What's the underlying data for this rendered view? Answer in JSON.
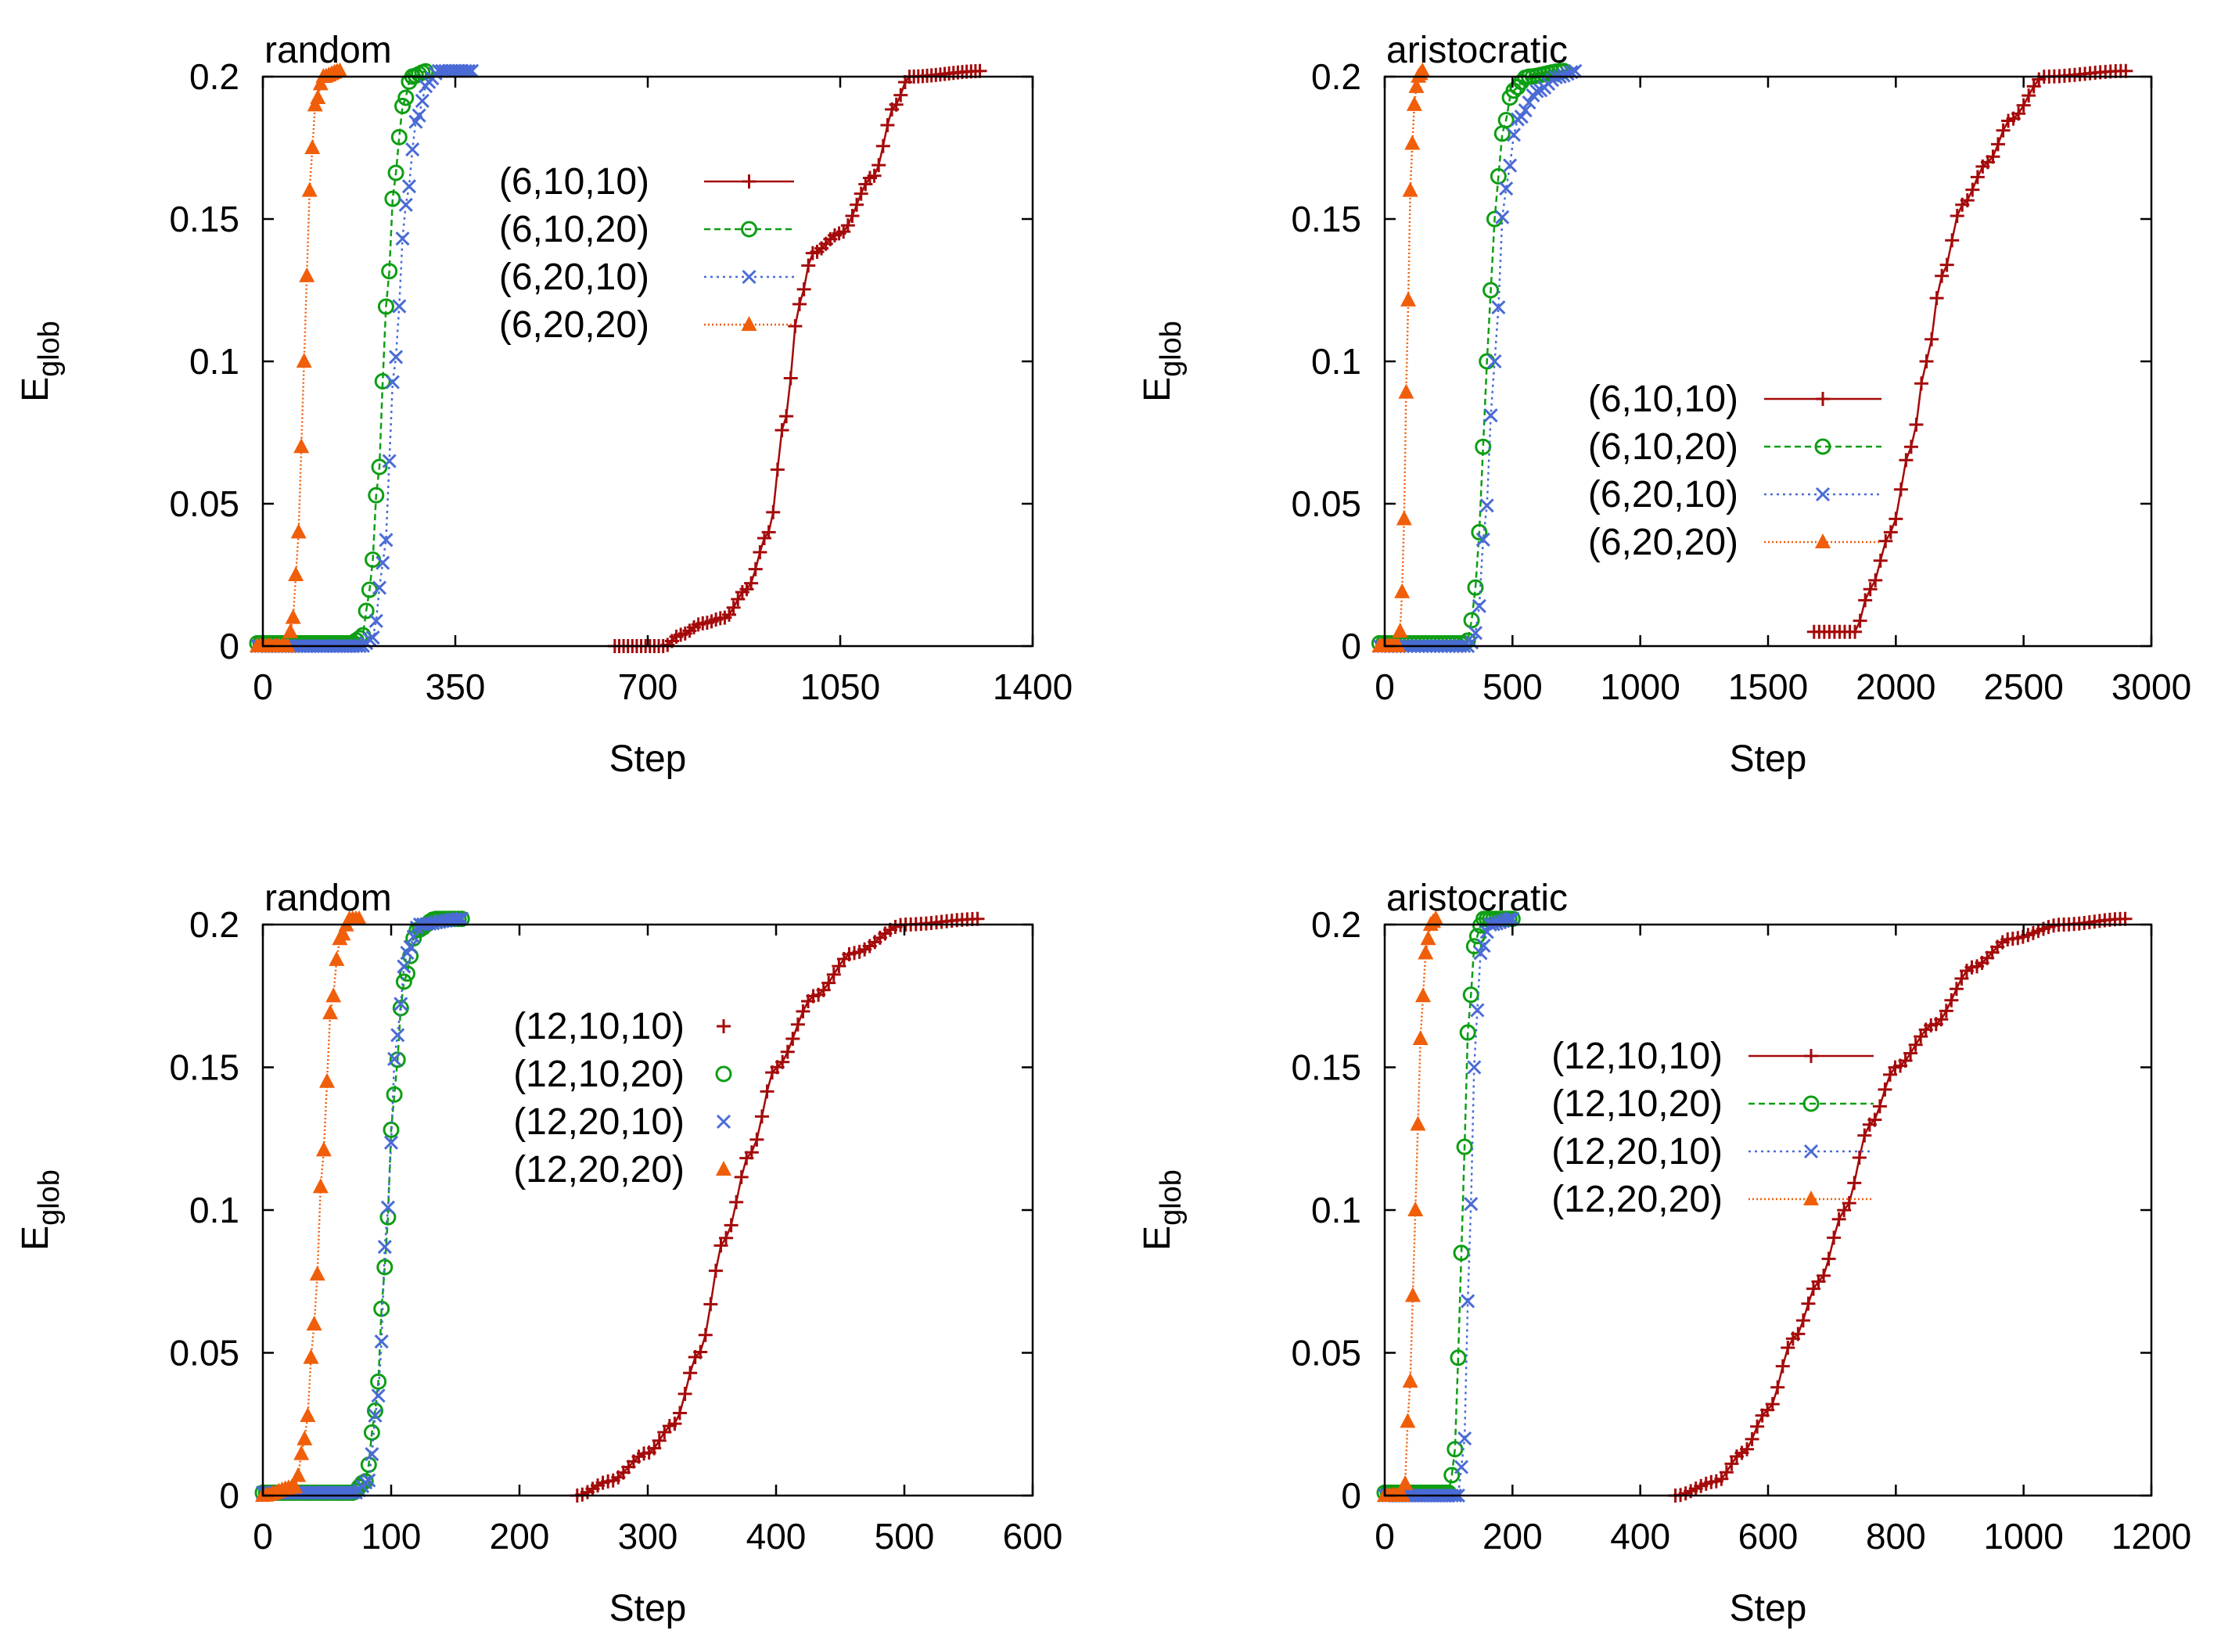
{
  "figure": {
    "description_text": ""
  },
  "chart_data": [
    {
      "type": "line",
      "title": "random",
      "xlabel": "Step",
      "ylabel_main": "E",
      "ylabel_sub": "glob",
      "xlim": [
        0,
        1400
      ],
      "ylim": [
        0,
        0.2
      ],
      "xticks": [
        0,
        350,
        700,
        1050,
        1400
      ],
      "xtick_labels": [
        "0",
        "350",
        "700",
        "1050",
        "1400"
      ],
      "yticks": [
        0,
        0.05,
        0.1,
        0.15,
        0.2
      ],
      "ytick_labels": [
        "0",
        "0.05",
        "0.1",
        "0.15",
        "0.2"
      ],
      "legend_position": "upper-middle",
      "legend_line": true,
      "series": [
        {
          "name": "(6,10,10)",
          "marker": "plus",
          "color": "#a50a0a",
          "start": 640,
          "end": 1310,
          "dx": 8,
          "curve": [
            [
              640,
              0
            ],
            [
              730,
              0
            ],
            [
              760,
              0.004
            ],
            [
              800,
              0.008
            ],
            [
              840,
              0.01
            ],
            [
              880,
              0.02
            ],
            [
              920,
              0.04
            ],
            [
              950,
              0.08
            ],
            [
              975,
              0.12
            ],
            [
              1000,
              0.138
            ],
            [
              1050,
              0.145
            ],
            [
              1110,
              0.165
            ],
            [
              1150,
              0.19
            ],
            [
              1175,
              0.2
            ],
            [
              1310,
              0.202
            ]
          ]
        },
        {
          "name": "(6,10,20)",
          "marker": "circle",
          "color": "#0e9e14",
          "start": -10,
          "end": 300,
          "dx": 6,
          "curve": [
            [
              -10,
              0.001
            ],
            [
              160,
              0.001
            ],
            [
              180,
              0.003
            ],
            [
              195,
              0.02
            ],
            [
              210,
              0.06
            ],
            [
              225,
              0.12
            ],
            [
              240,
              0.165
            ],
            [
              255,
              0.19
            ],
            [
              270,
              0.2
            ],
            [
              300,
              0.202
            ]
          ]
        },
        {
          "name": "(6,20,10)",
          "marker": "x",
          "color": "#4a6bd6",
          "start": -10,
          "end": 380,
          "dx": 6,
          "curve": [
            [
              -10,
              0.0
            ],
            [
              180,
              0.0
            ],
            [
              200,
              0.003
            ],
            [
              220,
              0.03
            ],
            [
              240,
              0.1
            ],
            [
              260,
              0.155
            ],
            [
              280,
              0.185
            ],
            [
              300,
              0.198
            ],
            [
              320,
              0.202
            ],
            [
              380,
              0.202
            ]
          ]
        },
        {
          "name": "(6,20,20)",
          "marker": "triangle",
          "color": "#f05e0a",
          "start": -10,
          "end": 140,
          "dx": 5,
          "curve": [
            [
              -10,
              0.0
            ],
            [
              45,
              0.0
            ],
            [
              55,
              0.01
            ],
            [
              65,
              0.04
            ],
            [
              75,
              0.1
            ],
            [
              85,
              0.16
            ],
            [
              95,
              0.19
            ],
            [
              110,
              0.2
            ],
            [
              140,
              0.202
            ]
          ]
        }
      ]
    },
    {
      "type": "line",
      "title": "aristocratic",
      "xlabel": "Step",
      "ylabel_main": "E",
      "ylabel_sub": "glob",
      "xlim": [
        0,
        3000
      ],
      "ylim": [
        0,
        0.2
      ],
      "xticks": [
        0,
        500,
        1000,
        1500,
        2000,
        2500,
        3000
      ],
      "xtick_labels": [
        "0",
        "500",
        "1000",
        "1500",
        "2000",
        "2500",
        "3000"
      ],
      "yticks": [
        0,
        0.05,
        0.1,
        0.15,
        0.2
      ],
      "ytick_labels": [
        "0",
        "0.05",
        "0.1",
        "0.15",
        "0.2"
      ],
      "legend_position": "center-right",
      "legend_line": true,
      "series": [
        {
          "name": "(6,10,10)",
          "marker": "plus",
          "color": "#a50a0a",
          "start": 1680,
          "end": 2900,
          "dx": 20,
          "curve": [
            [
              1680,
              0.005
            ],
            [
              1840,
              0.005
            ],
            [
              1900,
              0.02
            ],
            [
              1980,
              0.04
            ],
            [
              2060,
              0.07
            ],
            [
              2120,
              0.1
            ],
            [
              2180,
              0.13
            ],
            [
              2260,
              0.155
            ],
            [
              2360,
              0.17
            ],
            [
              2450,
              0.185
            ],
            [
              2580,
              0.2
            ],
            [
              2900,
              0.202
            ]
          ]
        },
        {
          "name": "(6,10,20)",
          "marker": "circle",
          "color": "#0e9e14",
          "start": -20,
          "end": 700,
          "dx": 15,
          "curve": [
            [
              -20,
              0.001
            ],
            [
              320,
              0.001
            ],
            [
              345,
              0.01
            ],
            [
              370,
              0.04
            ],
            [
              400,
              0.1
            ],
            [
              430,
              0.15
            ],
            [
              460,
              0.18
            ],
            [
              500,
              0.195
            ],
            [
              560,
              0.2
            ],
            [
              700,
              0.202
            ]
          ]
        },
        {
          "name": "(6,20,10)",
          "marker": "x",
          "color": "#4a6bd6",
          "start": -20,
          "end": 750,
          "dx": 15,
          "curve": [
            [
              -20,
              0.0
            ],
            [
              330,
              0.0
            ],
            [
              360,
              0.005
            ],
            [
              390,
              0.04
            ],
            [
              430,
              0.1
            ],
            [
              470,
              0.16
            ],
            [
              520,
              0.185
            ],
            [
              600,
              0.195
            ],
            [
              680,
              0.2
            ],
            [
              750,
              0.202
            ]
          ]
        },
        {
          "name": "(6,20,20)",
          "marker": "triangle",
          "color": "#f05e0a",
          "start": -20,
          "end": 150,
          "dx": 8,
          "curve": [
            [
              -20,
              0.0
            ],
            [
              55,
              0.0
            ],
            [
              70,
              0.02
            ],
            [
              85,
              0.09
            ],
            [
              100,
              0.16
            ],
            [
              115,
              0.19
            ],
            [
              130,
              0.2
            ],
            [
              150,
              0.202
            ]
          ]
        }
      ]
    },
    {
      "type": "line",
      "title": "random",
      "xlabel": "Step",
      "ylabel_main": "E",
      "ylabel_sub": "glob",
      "xlim": [
        0,
        600
      ],
      "ylim": [
        0,
        0.2
      ],
      "xticks": [
        0,
        100,
        200,
        300,
        400,
        500,
        600
      ],
      "xtick_labels": [
        "0",
        "100",
        "200",
        "300",
        "400",
        "500",
        "600"
      ],
      "yticks": [
        0,
        0.05,
        0.1,
        0.15,
        0.2
      ],
      "ytick_labels": [
        "0",
        "0.05",
        "0.1",
        "0.15",
        "0.2"
      ],
      "legend_position": "upper-middle",
      "legend_line": false,
      "series": [
        {
          "name": "(12,10,10)",
          "marker": "plus",
          "color": "#a50a0a",
          "start": 245,
          "end": 560,
          "dx": 4,
          "curve": [
            [
              245,
              0.0
            ],
            [
              270,
              0.005
            ],
            [
              300,
              0.015
            ],
            [
              320,
              0.025
            ],
            [
              340,
              0.05
            ],
            [
              360,
              0.09
            ],
            [
              380,
              0.12
            ],
            [
              400,
              0.15
            ],
            [
              430,
              0.175
            ],
            [
              460,
              0.19
            ],
            [
              500,
              0.2
            ],
            [
              560,
              0.202
            ]
          ]
        },
        {
          "name": "(12,10,20)",
          "marker": "circle",
          "color": "#0e9e14",
          "start": 0,
          "end": 155,
          "dx": 2.5,
          "curve": [
            [
              0,
              0.001
            ],
            [
              70,
              0.001
            ],
            [
              80,
              0.005
            ],
            [
              88,
              0.03
            ],
            [
              95,
              0.08
            ],
            [
              102,
              0.14
            ],
            [
              110,
              0.18
            ],
            [
              120,
              0.198
            ],
            [
              135,
              0.202
            ],
            [
              155,
              0.202
            ]
          ]
        },
        {
          "name": "(12,20,10)",
          "marker": "x",
          "color": "#4a6bd6",
          "start": 0,
          "end": 155,
          "dx": 2.5,
          "curve": [
            [
              0,
              0.001
            ],
            [
              72,
              0.001
            ],
            [
              82,
              0.005
            ],
            [
              90,
              0.035
            ],
            [
              97,
              0.1
            ],
            [
              104,
              0.16
            ],
            [
              112,
              0.19
            ],
            [
              122,
              0.2
            ],
            [
              155,
              0.202
            ]
          ]
        },
        {
          "name": "(12,20,20)",
          "marker": "triangle",
          "color": "#f05e0a",
          "start": 0,
          "end": 75,
          "dx": 2.5,
          "curve": [
            [
              0,
              0.0
            ],
            [
              25,
              0.003
            ],
            [
              33,
              0.02
            ],
            [
              40,
              0.06
            ],
            [
              47,
              0.12
            ],
            [
              53,
              0.17
            ],
            [
              60,
              0.195
            ],
            [
              68,
              0.202
            ],
            [
              75,
              0.202
            ]
          ]
        }
      ]
    },
    {
      "type": "line",
      "title": "aristocratic",
      "xlabel": "Step",
      "ylabel_main": "E",
      "ylabel_sub": "glob",
      "xlim": [
        0,
        1200
      ],
      "ylim": [
        0,
        0.2
      ],
      "xticks": [
        0,
        200,
        400,
        600,
        800,
        1000,
        1200
      ],
      "xtick_labels": [
        "0",
        "200",
        "400",
        "600",
        "800",
        "1000",
        "1200"
      ],
      "yticks": [
        0,
        0.05,
        0.1,
        0.15,
        0.2
      ],
      "ytick_labels": [
        "0",
        "0.05",
        "0.1",
        "0.15",
        "0.2"
      ],
      "legend_position": "center-left",
      "legend_line": true,
      "series": [
        {
          "name": "(12,10,10)",
          "marker": "plus",
          "color": "#a50a0a",
          "start": 455,
          "end": 1160,
          "dx": 8,
          "curve": [
            [
              455,
              0.0
            ],
            [
              520,
              0.005
            ],
            [
              560,
              0.015
            ],
            [
              600,
              0.03
            ],
            [
              640,
              0.055
            ],
            [
              680,
              0.075
            ],
            [
              720,
              0.1
            ],
            [
              760,
              0.13
            ],
            [
              800,
              0.15
            ],
            [
              860,
              0.165
            ],
            [
              920,
              0.185
            ],
            [
              980,
              0.195
            ],
            [
              1060,
              0.2
            ],
            [
              1160,
              0.202
            ]
          ]
        },
        {
          "name": "(12,10,20)",
          "marker": "circle",
          "color": "#0e9e14",
          "start": 0,
          "end": 200,
          "dx": 5,
          "curve": [
            [
              0,
              0.001
            ],
            [
              100,
              0.001
            ],
            [
              108,
              0.01
            ],
            [
              116,
              0.05
            ],
            [
              124,
              0.12
            ],
            [
              132,
              0.17
            ],
            [
              142,
              0.195
            ],
            [
              155,
              0.202
            ],
            [
              200,
              0.202
            ]
          ]
        },
        {
          "name": "(12,20,10)",
          "marker": "x",
          "color": "#4a6bd6",
          "start": 0,
          "end": 200,
          "dx": 5,
          "curve": [
            [
              0,
              0.0
            ],
            [
              115,
              0.0
            ],
            [
              125,
              0.02
            ],
            [
              132,
              0.08
            ],
            [
              140,
              0.15
            ],
            [
              150,
              0.19
            ],
            [
              165,
              0.2
            ],
            [
              200,
              0.202
            ]
          ]
        },
        {
          "name": "(12,20,20)",
          "marker": "triangle",
          "color": "#f05e0a",
          "start": 0,
          "end": 80,
          "dx": 4,
          "curve": [
            [
              0,
              0.0
            ],
            [
              30,
              0.0
            ],
            [
              40,
              0.04
            ],
            [
              48,
              0.1
            ],
            [
              56,
              0.16
            ],
            [
              64,
              0.19
            ],
            [
              72,
              0.2
            ],
            [
              80,
              0.202
            ]
          ]
        }
      ]
    }
  ]
}
